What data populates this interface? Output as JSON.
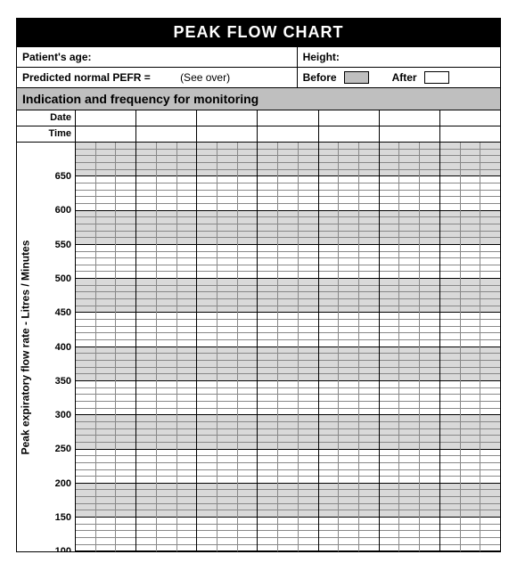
{
  "title": "PEAK FLOW CHART",
  "info": {
    "age_label": "Patient's age:",
    "height_label": "Height:",
    "pefr_label": "Predicted normal PEFR =",
    "see_over": "(See over)",
    "before_label": "Before",
    "after_label": "After"
  },
  "indication_label": "Indication and frequency for monitoring",
  "dt": {
    "date_label": "Date",
    "time_label": "Time"
  },
  "axis": {
    "title": "Peak expiratory flow rate - Litres / Minutes",
    "ticks": [
      "650",
      "600",
      "550",
      "500",
      "450",
      "400",
      "350",
      "300",
      "250",
      "200",
      "150",
      "100"
    ],
    "y_min": 100,
    "y_max": 700,
    "major_step": 50,
    "minor_per_major": 5
  },
  "layout": {
    "day_columns": 7,
    "subcols_per_day": 3,
    "tick_fontsize": 11,
    "title_fontsize": 18,
    "colors": {
      "black": "#000000",
      "white": "#ffffff",
      "grid_minor": "#888888",
      "shade": "#d9d9d9",
      "header_shade": "#bfbfbf"
    }
  }
}
